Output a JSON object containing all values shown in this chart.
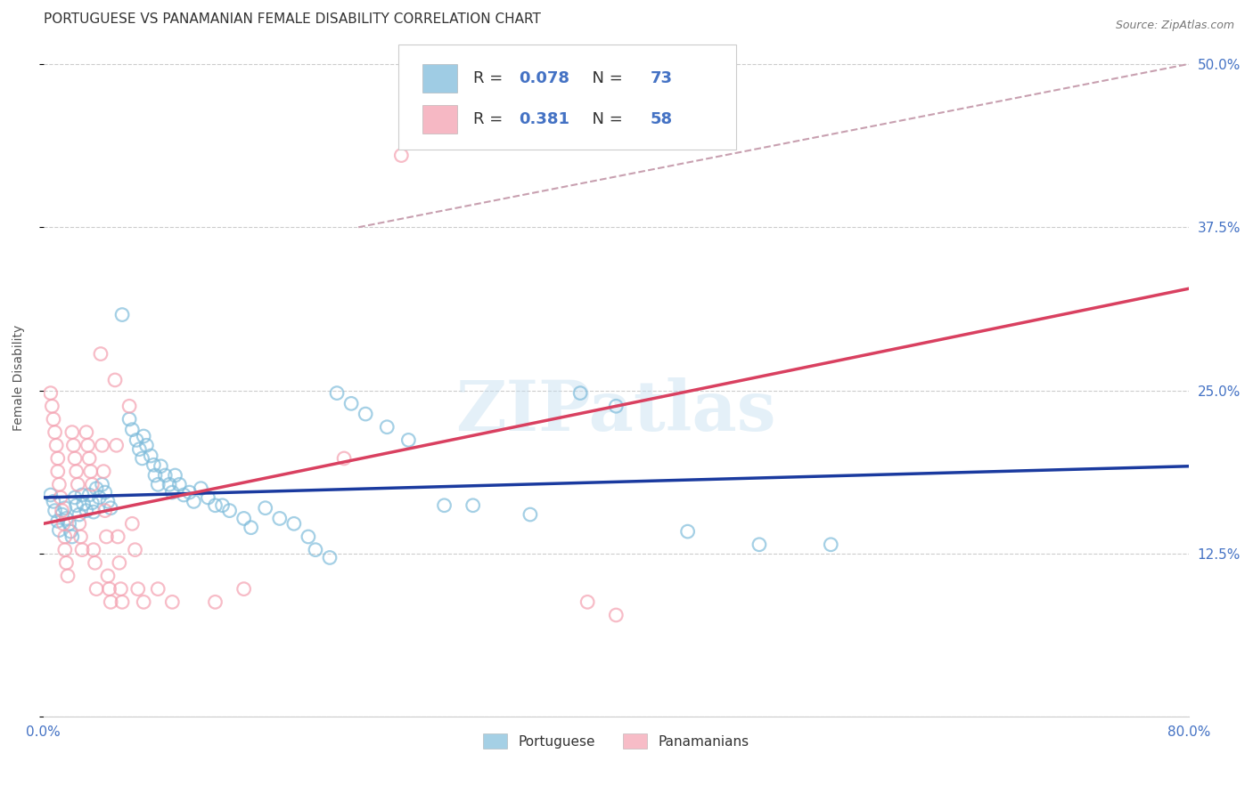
{
  "title": "PORTUGUESE VS PANAMANIAN FEMALE DISABILITY CORRELATION CHART",
  "source": "Source: ZipAtlas.com",
  "ylabel": "Female Disability",
  "xlim": [
    0.0,
    0.8
  ],
  "ylim": [
    0.0,
    0.52
  ],
  "yticks": [
    0.0,
    0.125,
    0.25,
    0.375,
    0.5
  ],
  "ytick_labels": [
    "",
    "12.5%",
    "25.0%",
    "37.5%",
    "50.0%"
  ],
  "xticks": [
    0.0,
    0.1,
    0.2,
    0.3,
    0.4,
    0.5,
    0.6,
    0.7,
    0.8
  ],
  "portuguese_color": "#7fbcdb",
  "panamanian_color": "#f4a0b0",
  "portuguese_R": "0.078",
  "portuguese_N": "73",
  "panamanian_R": "0.381",
  "panamanian_N": "58",
  "portuguese_scatter": [
    [
      0.005,
      0.17
    ],
    [
      0.007,
      0.165
    ],
    [
      0.008,
      0.158
    ],
    [
      0.01,
      0.15
    ],
    [
      0.011,
      0.143
    ],
    [
      0.013,
      0.155
    ],
    [
      0.015,
      0.16
    ],
    [
      0.016,
      0.152
    ],
    [
      0.018,
      0.148
    ],
    [
      0.019,
      0.142
    ],
    [
      0.02,
      0.138
    ],
    [
      0.022,
      0.168
    ],
    [
      0.023,
      0.162
    ],
    [
      0.025,
      0.155
    ],
    [
      0.027,
      0.17
    ],
    [
      0.028,
      0.163
    ],
    [
      0.03,
      0.158
    ],
    [
      0.032,
      0.17
    ],
    [
      0.034,
      0.164
    ],
    [
      0.035,
      0.157
    ],
    [
      0.037,
      0.175
    ],
    [
      0.039,
      0.168
    ],
    [
      0.041,
      0.178
    ],
    [
      0.043,
      0.172
    ],
    [
      0.045,
      0.165
    ],
    [
      0.047,
      0.16
    ],
    [
      0.055,
      0.308
    ],
    [
      0.06,
      0.228
    ],
    [
      0.062,
      0.22
    ],
    [
      0.065,
      0.212
    ],
    [
      0.067,
      0.205
    ],
    [
      0.069,
      0.198
    ],
    [
      0.07,
      0.215
    ],
    [
      0.072,
      0.208
    ],
    [
      0.075,
      0.2
    ],
    [
      0.077,
      0.193
    ],
    [
      0.078,
      0.185
    ],
    [
      0.08,
      0.178
    ],
    [
      0.082,
      0.192
    ],
    [
      0.085,
      0.185
    ],
    [
      0.088,
      0.178
    ],
    [
      0.09,
      0.172
    ],
    [
      0.092,
      0.185
    ],
    [
      0.095,
      0.178
    ],
    [
      0.098,
      0.17
    ],
    [
      0.102,
      0.172
    ],
    [
      0.105,
      0.165
    ],
    [
      0.11,
      0.175
    ],
    [
      0.115,
      0.168
    ],
    [
      0.12,
      0.162
    ],
    [
      0.125,
      0.162
    ],
    [
      0.13,
      0.158
    ],
    [
      0.14,
      0.152
    ],
    [
      0.145,
      0.145
    ],
    [
      0.155,
      0.16
    ],
    [
      0.165,
      0.152
    ],
    [
      0.175,
      0.148
    ],
    [
      0.185,
      0.138
    ],
    [
      0.19,
      0.128
    ],
    [
      0.2,
      0.122
    ],
    [
      0.205,
      0.248
    ],
    [
      0.215,
      0.24
    ],
    [
      0.225,
      0.232
    ],
    [
      0.24,
      0.222
    ],
    [
      0.255,
      0.212
    ],
    [
      0.28,
      0.162
    ],
    [
      0.3,
      0.162
    ],
    [
      0.34,
      0.155
    ],
    [
      0.375,
      0.248
    ],
    [
      0.4,
      0.238
    ],
    [
      0.45,
      0.142
    ],
    [
      0.5,
      0.132
    ],
    [
      0.55,
      0.132
    ]
  ],
  "panamanian_scatter": [
    [
      0.005,
      0.248
    ],
    [
      0.006,
      0.238
    ],
    [
      0.007,
      0.228
    ],
    [
      0.008,
      0.218
    ],
    [
      0.009,
      0.208
    ],
    [
      0.01,
      0.198
    ],
    [
      0.01,
      0.188
    ],
    [
      0.011,
      0.178
    ],
    [
      0.012,
      0.168
    ],
    [
      0.013,
      0.158
    ],
    [
      0.014,
      0.148
    ],
    [
      0.015,
      0.138
    ],
    [
      0.015,
      0.128
    ],
    [
      0.016,
      0.118
    ],
    [
      0.017,
      0.108
    ],
    [
      0.02,
      0.218
    ],
    [
      0.021,
      0.208
    ],
    [
      0.022,
      0.198
    ],
    [
      0.023,
      0.188
    ],
    [
      0.024,
      0.178
    ],
    [
      0.025,
      0.148
    ],
    [
      0.026,
      0.138
    ],
    [
      0.027,
      0.128
    ],
    [
      0.03,
      0.218
    ],
    [
      0.031,
      0.208
    ],
    [
      0.032,
      0.198
    ],
    [
      0.033,
      0.188
    ],
    [
      0.034,
      0.178
    ],
    [
      0.035,
      0.128
    ],
    [
      0.036,
      0.118
    ],
    [
      0.037,
      0.098
    ],
    [
      0.04,
      0.278
    ],
    [
      0.041,
      0.208
    ],
    [
      0.042,
      0.188
    ],
    [
      0.043,
      0.158
    ],
    [
      0.044,
      0.138
    ],
    [
      0.045,
      0.108
    ],
    [
      0.046,
      0.098
    ],
    [
      0.047,
      0.088
    ],
    [
      0.05,
      0.258
    ],
    [
      0.051,
      0.208
    ],
    [
      0.052,
      0.138
    ],
    [
      0.053,
      0.118
    ],
    [
      0.054,
      0.098
    ],
    [
      0.055,
      0.088
    ],
    [
      0.06,
      0.238
    ],
    [
      0.062,
      0.148
    ],
    [
      0.064,
      0.128
    ],
    [
      0.066,
      0.098
    ],
    [
      0.07,
      0.088
    ],
    [
      0.08,
      0.098
    ],
    [
      0.09,
      0.088
    ],
    [
      0.25,
      0.43
    ],
    [
      0.12,
      0.088
    ],
    [
      0.14,
      0.098
    ],
    [
      0.21,
      0.198
    ],
    [
      0.38,
      0.088
    ],
    [
      0.4,
      0.078
    ]
  ],
  "portuguese_trend": [
    0.0,
    0.168,
    0.8,
    0.192
  ],
  "panamanian_trend": [
    0.0,
    0.148,
    0.8,
    0.328
  ],
  "diagonal": [
    0.22,
    0.375,
    0.8,
    0.5
  ],
  "watermark": "ZIPatlas",
  "bg_color": "#ffffff",
  "grid_color": "#cccccc",
  "title_color": "#333333",
  "tick_color": "#4472c4",
  "title_fontsize": 11,
  "tick_fontsize": 11,
  "source_fontsize": 9,
  "ylabel_fontsize": 10
}
